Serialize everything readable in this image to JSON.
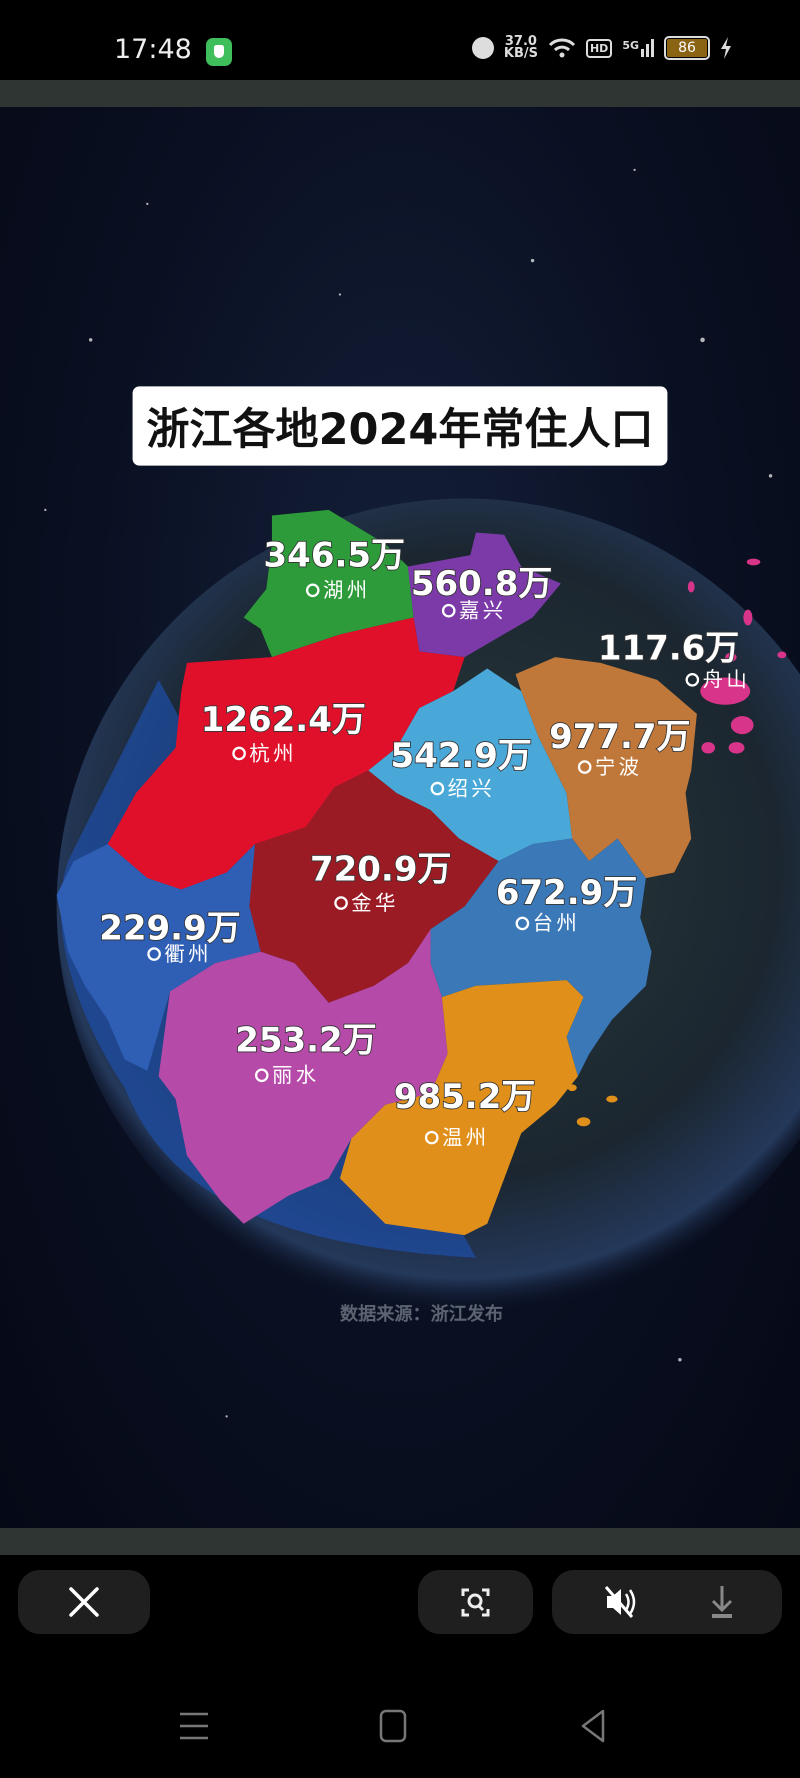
{
  "status_bar": {
    "time": "17:48",
    "net_speed_value": "37.0",
    "net_speed_unit": "KB/S",
    "hd_label": "HD",
    "network_label": "5G",
    "battery": "86",
    "icons": [
      "shield-app-icon",
      "alarm-icon",
      "wifi-icon",
      "signal-icon",
      "battery-icon",
      "charging-icon"
    ]
  },
  "image": {
    "title": "浙江各地2024年常住人口",
    "source": "数据来源：浙江发布",
    "regions": [
      {
        "name": "湖州",
        "value": "346.5万",
        "color": "#2e9b3a"
      },
      {
        "name": "嘉兴",
        "value": "560.8万",
        "color": "#7b3aa8"
      },
      {
        "name": "舟山",
        "value": "117.6万",
        "color": "#d8358a"
      },
      {
        "name": "杭州",
        "value": "1262.4万",
        "color": "#e0102a"
      },
      {
        "name": "绍兴",
        "value": "542.9万",
        "color": "#4aa8d8"
      },
      {
        "name": "宁波",
        "value": "977.7万",
        "color": "#c0783a"
      },
      {
        "name": "金华",
        "value": "720.9万",
        "color": "#9b1b25"
      },
      {
        "name": "台州",
        "value": "672.9万",
        "color": "#3a78b8"
      },
      {
        "name": "衢州",
        "value": "229.9万",
        "color": "#2f5fb5"
      },
      {
        "name": "丽水",
        "value": "253.2万",
        "color": "#b64aa8"
      },
      {
        "name": "温州",
        "value": "985.2万",
        "color": "#e0901a"
      }
    ]
  },
  "toolbar": {
    "icons": [
      "close-icon",
      "scan-search-icon",
      "mute-icon",
      "download-icon"
    ]
  },
  "nav": {
    "icons": [
      "menu-icon",
      "home-icon",
      "back-icon"
    ]
  }
}
